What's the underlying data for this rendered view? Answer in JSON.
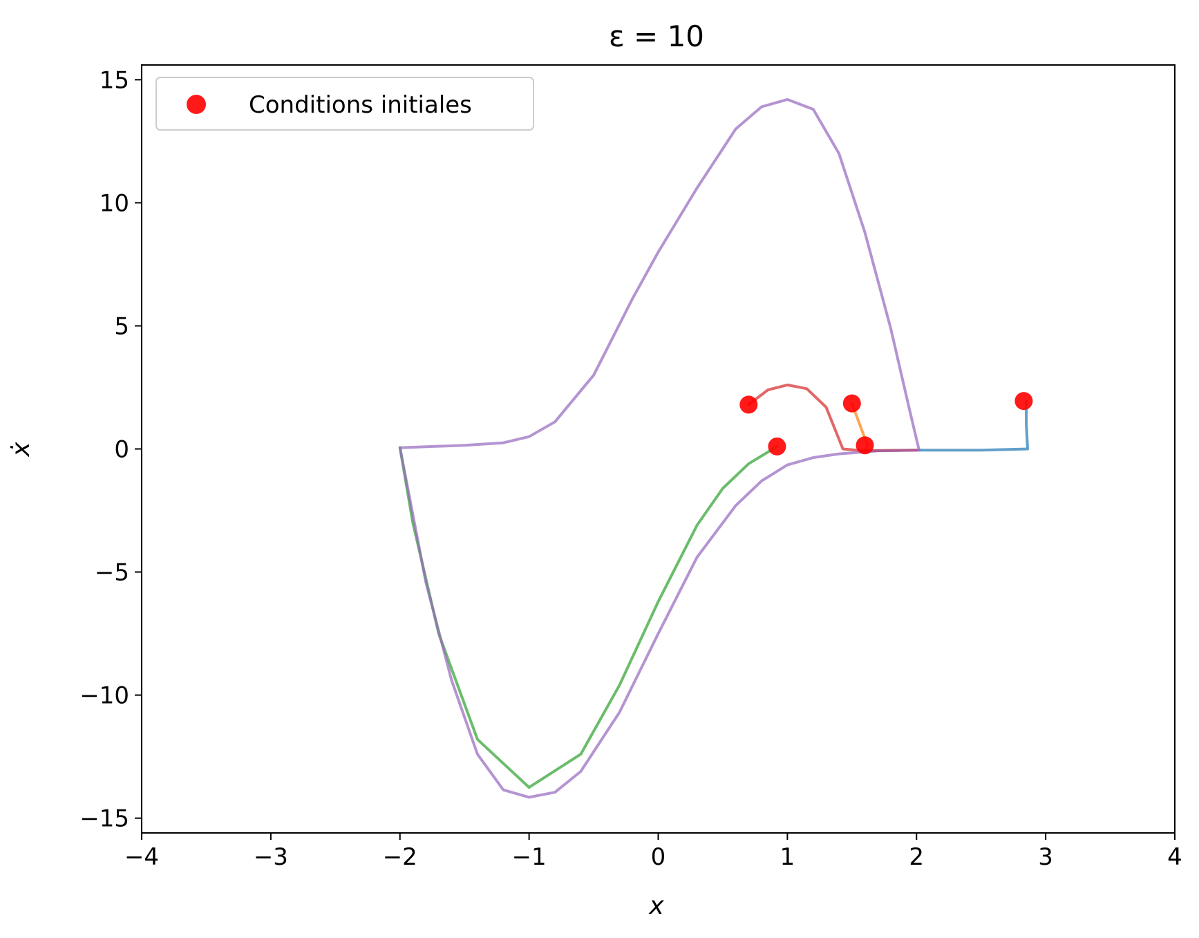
{
  "chart_data": {
    "type": "line",
    "title": "ε = 10",
    "xlabel": "x",
    "ylabel": "ẋ",
    "xlim": [
      -4,
      4
    ],
    "ylim": [
      -15.6,
      15.6
    ],
    "xticks": [
      -4,
      -3,
      -2,
      -1,
      0,
      1,
      2,
      3,
      4
    ],
    "yticks": [
      -15,
      -10,
      -5,
      0,
      5,
      10,
      15
    ],
    "xtick_labels": [
      "−4",
      "−3",
      "−2",
      "−1",
      "0",
      "1",
      "2",
      "3",
      "4"
    ],
    "ytick_labels": [
      "−15",
      "−10",
      "−5",
      "0",
      "5",
      "10",
      "15"
    ],
    "grid": false,
    "legend_position": "top-left",
    "legend": [
      {
        "label": "Conditions initiales",
        "marker": "circle",
        "color": "#ff0000"
      }
    ],
    "series": [
      {
        "color": "#1f77b4",
        "points": [
          [
            2.85,
            1.95
          ],
          [
            2.85,
            1.0
          ],
          [
            2.86,
            0.0
          ],
          [
            2.5,
            -0.05
          ],
          [
            2.02,
            -0.05
          ]
        ]
      },
      {
        "color": "#ff7f0e",
        "points": [
          [
            1.5,
            1.85
          ],
          [
            1.56,
            1.0
          ],
          [
            1.62,
            0.15
          ],
          [
            1.6,
            -0.08
          ],
          [
            1.75,
            -0.06
          ],
          [
            2.0,
            -0.05
          ]
        ]
      },
      {
        "color": "#2ca02c",
        "points": [
          [
            0.92,
            0.1
          ],
          [
            0.7,
            -0.6
          ],
          [
            0.5,
            -1.6
          ],
          [
            0.3,
            -3.1
          ],
          [
            0.0,
            -6.2
          ],
          [
            -0.3,
            -9.6
          ],
          [
            -0.6,
            -12.4
          ],
          [
            -1.0,
            -13.75
          ],
          [
            -1.4,
            -11.8
          ],
          [
            -1.7,
            -7.5
          ],
          [
            -1.9,
            -3.0
          ],
          [
            -2.0,
            0.05
          ]
        ]
      },
      {
        "color": "#d62728",
        "points": [
          [
            0.7,
            1.8
          ],
          [
            0.85,
            2.4
          ],
          [
            1.0,
            2.6
          ],
          [
            1.15,
            2.45
          ],
          [
            1.3,
            1.7
          ],
          [
            1.43,
            0.0
          ],
          [
            1.6,
            -0.08
          ],
          [
            2.0,
            -0.05
          ]
        ]
      },
      {
        "color": "#9467bd",
        "points": [
          [
            -2.0,
            0.05
          ],
          [
            -1.5,
            0.15
          ],
          [
            -1.2,
            0.25
          ],
          [
            -1.0,
            0.5
          ],
          [
            -0.8,
            1.1
          ],
          [
            -0.5,
            3.0
          ],
          [
            -0.2,
            6.1
          ],
          [
            0.0,
            8.0
          ],
          [
            0.3,
            10.6
          ],
          [
            0.6,
            13.0
          ],
          [
            0.8,
            13.9
          ],
          [
            1.0,
            14.2
          ],
          [
            1.2,
            13.8
          ],
          [
            1.4,
            12.0
          ],
          [
            1.6,
            8.8
          ],
          [
            1.8,
            4.9
          ],
          [
            1.95,
            1.5
          ],
          [
            2.02,
            -0.05
          ],
          [
            1.7,
            -0.08
          ],
          [
            1.4,
            -0.2
          ],
          [
            1.2,
            -0.35
          ],
          [
            1.0,
            -0.65
          ],
          [
            0.8,
            -1.3
          ],
          [
            0.6,
            -2.3
          ],
          [
            0.3,
            -4.4
          ],
          [
            0.0,
            -7.5
          ],
          [
            -0.3,
            -10.7
          ],
          [
            -0.6,
            -13.1
          ],
          [
            -0.8,
            -13.95
          ],
          [
            -1.0,
            -14.15
          ],
          [
            -1.2,
            -13.85
          ],
          [
            -1.4,
            -12.4
          ],
          [
            -1.6,
            -9.4
          ],
          [
            -1.8,
            -5.4
          ],
          [
            -2.0,
            0.05
          ]
        ]
      }
    ],
    "initial_conditions": [
      [
        2.83,
        1.95
      ],
      [
        1.5,
        1.85
      ],
      [
        1.6,
        0.15
      ],
      [
        0.7,
        1.8
      ],
      [
        0.92,
        0.1
      ]
    ],
    "initial_condition_color": "#ff0000"
  }
}
